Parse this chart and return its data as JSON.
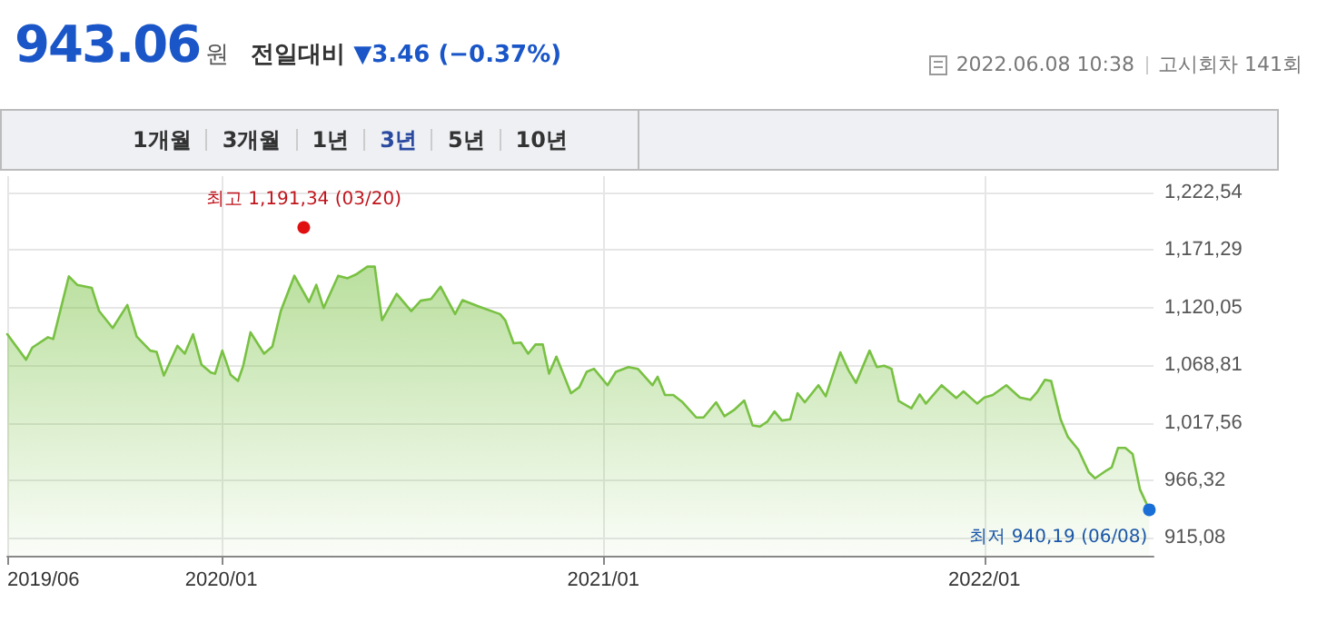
{
  "chart_data": {
    "type": "area",
    "title": "943.06원",
    "subtitle": "전일대비 ▼3.46 (−0.37%)",
    "annotations": [
      "2022.06.08 10:38",
      "고시회차 141회",
      "1개월",
      "3개월",
      "1년",
      "3년",
      "5년",
      "10년",
      {
        "text": "최고 1,191,34 (03/20)",
        "x": "2020-03-20",
        "y": 1191.34
      },
      {
        "text": "최저 940,19 (06/08)",
        "x": "2022-06-08",
        "y": 940.19
      }
    ],
    "x": [
      "2019-06-10",
      "2019-06-28",
      "2019-07-04",
      "2019-07-19",
      "2019-07-24",
      "2019-08-08",
      "2019-08-16",
      "2019-08-30",
      "2019-09-06",
      "2019-09-19",
      "2019-10-03",
      "2019-10-12",
      "2019-10-25",
      "2019-10-31",
      "2019-11-07",
      "2019-11-20",
      "2019-11-27",
      "2019-12-05",
      "2019-12-13",
      "2019-12-22",
      "2019-12-26",
      "2020-01-02",
      "2020-01-10",
      "2020-01-17",
      "2020-01-22",
      "2020-01-29",
      "2020-02-11",
      "2020-02-19",
      "2020-02-27",
      "2020-03-11",
      "2020-03-25",
      "2020-04-01",
      "2020-04-08",
      "2020-04-16",
      "2020-04-22",
      "2020-05-01",
      "2020-05-09",
      "2020-05-20",
      "2020-05-27",
      "2020-06-03",
      "2020-06-17",
      "2020-07-01",
      "2020-07-10",
      "2020-07-20",
      "2020-07-29",
      "2020-08-12",
      "2020-08-19",
      "2020-09-03",
      "2020-09-19",
      "2020-09-24",
      "2020-09-29",
      "2020-10-07",
      "2020-10-14",
      "2020-10-21",
      "2020-10-28",
      "2020-11-04",
      "2020-11-10",
      "2020-11-17",
      "2020-12-01",
      "2020-12-09",
      "2020-12-16",
      "2020-12-23",
      "2021-01-05",
      "2021-01-13",
      "2021-01-25",
      "2021-02-03",
      "2021-02-17",
      "2021-02-22",
      "2021-03-01",
      "2021-03-09",
      "2021-03-18",
      "2021-03-31",
      "2021-04-07",
      "2021-04-19",
      "2021-04-27",
      "2021-05-06",
      "2021-05-16",
      "2021-05-24",
      "2021-05-31",
      "2021-06-07",
      "2021-06-14",
      "2021-06-21",
      "2021-06-29",
      "2021-07-06",
      "2021-07-13",
      "2021-07-26",
      "2021-08-02",
      "2021-08-16",
      "2021-08-24",
      "2021-08-31",
      "2021-09-13",
      "2021-09-20",
      "2021-09-27",
      "2021-10-04",
      "2021-10-11",
      "2021-10-23",
      "2021-10-31",
      "2021-11-06",
      "2021-11-21",
      "2021-12-05",
      "2021-12-12",
      "2021-12-25",
      "2022-01-01",
      "2022-01-09",
      "2022-01-22",
      "2022-02-04",
      "2022-02-14",
      "2022-02-21",
      "2022-02-28",
      "2022-03-06",
      "2022-03-15",
      "2022-03-22",
      "2022-04-01",
      "2022-04-11",
      "2022-04-17",
      "2022-04-28",
      "2022-05-03",
      "2022-05-09",
      "2022-05-16",
      "2022-05-23",
      "2022-05-30",
      "2022-06-08"
    ],
    "series": [
      {
        "color": "#78c142",
        "values": [
          1096.4,
          1073.7,
          1084.5,
          1093.7,
          1092.1,
          1147.9,
          1140.3,
          1137.6,
          1117.0,
          1101.9,
          1122.4,
          1094.3,
          1081.8,
          1080.7,
          1059.6,
          1086.1,
          1079.1,
          1096.4,
          1069.4,
          1062.3,
          1061.2,
          1081.8,
          1060.2,
          1054.8,
          1068.3,
          1098.1,
          1079.1,
          1085.6,
          1117.0,
          1148.4,
          1125.1,
          1140.3,
          1119.7,
          1136.0,
          1148.4,
          1146.2,
          1149.5,
          1156.5,
          1156.5,
          1108.9,
          1132.2,
          1117.0,
          1126.2,
          1127.8,
          1138.7,
          1114.3,
          1126.7,
          1121.3,
          1115.9,
          1114.3,
          1108.9,
          1088.3,
          1088.9,
          1079.1,
          1087.2,
          1087.2,
          1061.2,
          1076.4,
          1043.9,
          1049.3,
          1062.9,
          1065.6,
          1051.0,
          1062.9,
          1067.2,
          1065.6,
          1051.0,
          1058.5,
          1042.3,
          1042.3,
          1035.8,
          1022.3,
          1022.3,
          1035.8,
          1023.4,
          1028.8,
          1037.4,
          1015.2,
          1014.2,
          1018.5,
          1027.7,
          1019.6,
          1020.7,
          1043.9,
          1035.8,
          1051.0,
          1041.2,
          1080.2,
          1064.0,
          1053.1,
          1081.8,
          1067.2,
          1068.3,
          1065.6,
          1036.9,
          1030.4,
          1042.8,
          1034.7,
          1051.0,
          1039.6,
          1045.5,
          1034.7,
          1040.1,
          1042.3,
          1051.0,
          1040.1,
          1038.0,
          1045.5,
          1055.8,
          1054.7,
          1020.7,
          1005.0,
          993.6,
          973.6,
          968.2,
          975.2,
          977.9,
          995.2,
          995.2,
          989.8,
          958.4,
          940.19
        ]
      }
    ],
    "xlim": [
      "2019-06-10",
      "2022-06-12"
    ],
    "xticks": [
      {
        "value": "2019-06-10",
        "label": "2019/06"
      },
      {
        "value": "2020-01-01",
        "label": "2020/01"
      },
      {
        "value": "2021-01-01",
        "label": "2021/01"
      },
      {
        "value": "2022-01-01",
        "label": "2022/01"
      }
    ],
    "ylim": [
      899.3,
      1237
    ],
    "yticks": [
      {
        "value": 915.08,
        "label": "915,08"
      },
      {
        "value": 966.32,
        "label": "966,32"
      },
      {
        "value": 1017.56,
        "label": "1,017,56"
      },
      {
        "value": 1068.81,
        "label": "1,068,81"
      },
      {
        "value": 1120.05,
        "label": "1,120,05"
      },
      {
        "value": 1171.29,
        "label": "1,171,29"
      },
      {
        "value": 1222.54,
        "label": "1,222,54"
      }
    ],
    "grid": true,
    "marker": "none",
    "line_style": "solid"
  }
}
